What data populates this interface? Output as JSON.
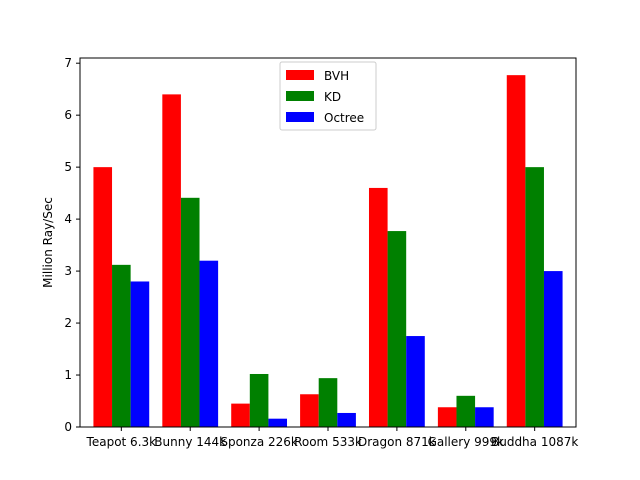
{
  "chart_data": {
    "type": "bar",
    "title": "",
    "xlabel": "",
    "ylabel": "Million Ray/Sec",
    "ylim": [
      0,
      7.1
    ],
    "yticks": [
      0,
      1,
      2,
      3,
      4,
      5,
      6,
      7
    ],
    "grid": false,
    "legend_position": "top-center",
    "categories": [
      "Teapot 6.3k",
      "Bunny 144k",
      "Sponza 226k",
      "Room 533k",
      "Dragon 871k",
      "Gallery 999k",
      "Buddha 1087k"
    ],
    "series": [
      {
        "name": "BVH",
        "color": "#ff0000",
        "values": [
          5.0,
          6.4,
          0.45,
          0.63,
          4.6,
          0.38,
          6.77
        ]
      },
      {
        "name": "KD",
        "color": "#008000",
        "values": [
          3.12,
          4.41,
          1.02,
          0.94,
          3.77,
          0.6,
          5.0
        ]
      },
      {
        "name": "Octree",
        "color": "#0000ff",
        "values": [
          2.8,
          3.2,
          0.16,
          0.27,
          1.75,
          0.38,
          3.0
        ]
      }
    ]
  }
}
